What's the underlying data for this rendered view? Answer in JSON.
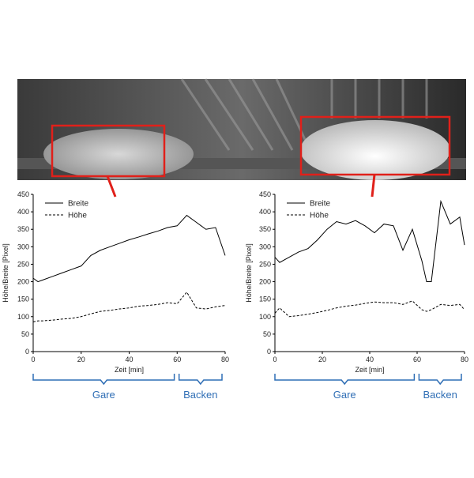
{
  "chart_data": [
    {
      "type": "line",
      "ylabel": "Höhe/Breite [Pixel]",
      "xlabel": "Zeit [min]",
      "xlim": [
        0,
        80
      ],
      "xticks": [
        0,
        20,
        40,
        60,
        80
      ],
      "ylim": [
        0,
        450
      ],
      "yticks": [
        0,
        50,
        100,
        150,
        200,
        250,
        300,
        350,
        400,
        450
      ],
      "legend": "upper left",
      "x": [
        0,
        2,
        4,
        8,
        12,
        16,
        20,
        24,
        28,
        32,
        36,
        40,
        44,
        48,
        52,
        56,
        60,
        64,
        68,
        72,
        76,
        80
      ],
      "series": [
        {
          "name": "Breite",
          "color": "#000000",
          "style": "solid",
          "values": [
            210,
            200,
            205,
            215,
            225,
            235,
            245,
            275,
            290,
            300,
            310,
            320,
            328,
            337,
            345,
            355,
            360,
            390,
            370,
            350,
            355,
            275
          ]
        },
        {
          "name": "Höhe",
          "color": "#000000",
          "style": "dashed",
          "values": [
            85,
            88,
            88,
            90,
            93,
            95,
            100,
            108,
            115,
            118,
            122,
            125,
            130,
            132,
            135,
            140,
            137,
            170,
            125,
            122,
            128,
            132
          ]
        }
      ],
      "annotations": [
        "Gare",
        "Backen"
      ]
    },
    {
      "type": "line",
      "ylabel": "Höhe/Breite [Pixel]",
      "xlabel": "Zeit [min]",
      "xlim": [
        0,
        80
      ],
      "xticks": [
        0,
        20,
        40,
        60,
        80
      ],
      "ylim": [
        0,
        450
      ],
      "yticks": [
        0,
        50,
        100,
        150,
        200,
        250,
        300,
        350,
        400,
        450
      ],
      "legend": "upper left",
      "x": [
        0,
        2,
        6,
        10,
        14,
        18,
        22,
        26,
        30,
        34,
        38,
        42,
        46,
        50,
        54,
        58,
        62,
        64,
        66,
        70,
        74,
        78,
        80
      ],
      "series": [
        {
          "name": "Breite",
          "color": "#000000",
          "style": "solid",
          "values": [
            270,
            255,
            270,
            285,
            295,
            320,
            350,
            372,
            365,
            375,
            360,
            340,
            365,
            360,
            290,
            350,
            260,
            200,
            200,
            430,
            365,
            385,
            305
          ]
        },
        {
          "name": "Höhe",
          "color": "#000000",
          "style": "dashed",
          "values": [
            110,
            125,
            100,
            103,
            107,
            112,
            118,
            125,
            130,
            133,
            138,
            142,
            140,
            140,
            135,
            145,
            120,
            115,
            120,
            135,
            132,
            135,
            120
          ]
        }
      ],
      "annotations": [
        "Gare",
        "Backen"
      ]
    }
  ]
}
